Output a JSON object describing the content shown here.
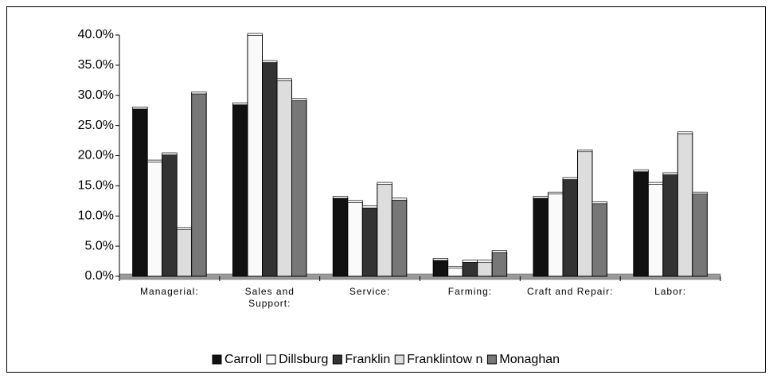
{
  "chart_data": {
    "type": "bar",
    "categories": [
      "Managerial:",
      "Sales and Support:",
      "Service:",
      "Farming:",
      "Craft and Repair:",
      "Labor:"
    ],
    "series": [
      {
        "name": "Carroll",
        "color": "#111111",
        "values": [
          27.8,
          28.5,
          13.0,
          2.7,
          13.0,
          17.4
        ]
      },
      {
        "name": "Dillsburg",
        "color": "#fafafa",
        "values": [
          19.0,
          40.0,
          12.3,
          1.4,
          13.7,
          15.3
        ]
      },
      {
        "name": "Franklin",
        "color": "#333333",
        "values": [
          20.2,
          35.5,
          11.4,
          2.4,
          16.1,
          16.9
        ]
      },
      {
        "name": "Franklintow n",
        "color": "#dddddd",
        "values": [
          7.8,
          32.5,
          15.3,
          2.4,
          20.7,
          23.7
        ]
      },
      {
        "name": "Monaghan",
        "color": "#777777",
        "values": [
          30.3,
          29.2,
          12.7,
          4.0,
          12.1,
          13.7
        ]
      }
    ],
    "ylim": [
      0,
      40
    ],
    "yticks": [
      {
        "value": 0,
        "label": "0.0%"
      },
      {
        "value": 5,
        "label": "5.0%"
      },
      {
        "value": 10,
        "label": "10.0%"
      },
      {
        "value": 15,
        "label": "15.0%"
      },
      {
        "value": 20,
        "label": "20.0%"
      },
      {
        "value": 25,
        "label": "25.0%"
      },
      {
        "value": 30,
        "label": "30.0%"
      },
      {
        "value": 35,
        "label": "35.0%"
      },
      {
        "value": 40,
        "label": "40.0%"
      }
    ],
    "legend": "bottom"
  }
}
